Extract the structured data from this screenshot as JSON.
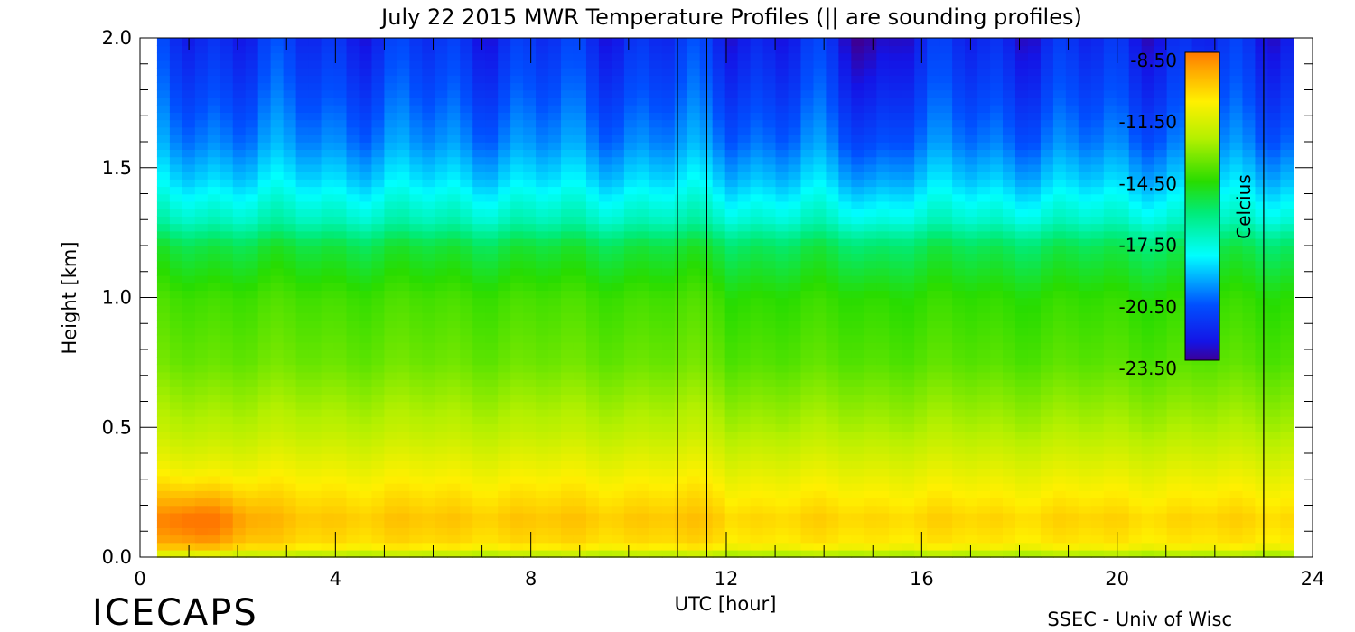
{
  "chart_data": {
    "type": "heatmap",
    "title": "July 22 2015 MWR Temperature Profiles (|| are sounding profiles)",
    "xlabel": "UTC [hour]",
    "ylabel": "Height [km]",
    "xlim": [
      0,
      24
    ],
    "ylim": [
      0,
      2
    ],
    "x_ticks": [
      "0",
      "4",
      "8",
      "12",
      "16",
      "20",
      "24"
    ],
    "y_ticks": [
      "0.0",
      "0.5",
      "1.0",
      "1.5",
      "2.0"
    ],
    "x_tick_values": [
      0,
      4,
      8,
      12,
      16,
      20,
      24
    ],
    "y_tick_values": [
      0,
      0.5,
      1.0,
      1.5,
      2.0
    ],
    "data_x_range": [
      0.35,
      23.6
    ],
    "colorbar": {
      "label": "Celcius",
      "ticks": [
        "-8.50",
        "-11.50",
        "-14.50",
        "-17.50",
        "-20.50",
        "-23.50"
      ],
      "tick_values": [
        -8.5,
        -11.5,
        -14.5,
        -17.5,
        -20.5,
        -23.5
      ],
      "range": [
        -23.5,
        -8.5
      ]
    },
    "sounding_times": [
      11.0,
      11.6,
      23.0
    ],
    "heights": [
      0.0,
      0.05,
      0.15,
      0.3,
      0.5,
      0.75,
      1.0,
      1.2,
      1.3,
      1.45,
      1.6,
      1.8,
      2.0
    ],
    "profile": [
      -13.0,
      -10.5,
      -10.0,
      -11.0,
      -12.5,
      -13.8,
      -14.4,
      -15.6,
      -17.3,
      -18.8,
      -20.0,
      -21.0,
      -21.8
    ],
    "footer_left": "ICECAPS",
    "footer_right": "SSEC - Univ of Wisc"
  }
}
